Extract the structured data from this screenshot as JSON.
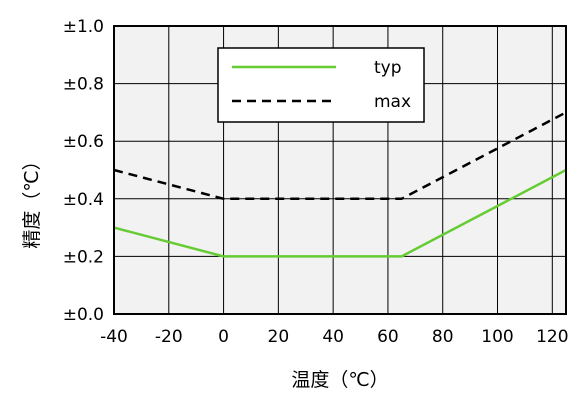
{
  "chart_data": {
    "type": "line",
    "xlabel": "温度（℃）",
    "ylabel": "精度（℃）",
    "xlim": [
      -40,
      125
    ],
    "ylim": [
      0,
      1.0
    ],
    "x_ticks": [
      "-40",
      "-20",
      "0",
      "20",
      "40",
      "60",
      "80",
      "100",
      "120"
    ],
    "y_ticks": [
      "±0.0",
      "±0.2",
      "±0.4",
      "±0.6",
      "±0.8",
      "±1.0"
    ],
    "grid": true,
    "legend_position": "top-center",
    "series": [
      {
        "name": "typ",
        "color": "#66cc33",
        "style": "solid",
        "points": [
          [
            -40,
            0.3
          ],
          [
            0,
            0.2
          ],
          [
            65,
            0.2
          ],
          [
            125,
            0.5
          ]
        ]
      },
      {
        "name": "max",
        "color": "#000000",
        "style": "dashed",
        "points": [
          [
            -40,
            0.5
          ],
          [
            0,
            0.4
          ],
          [
            65,
            0.4
          ],
          [
            125,
            0.7
          ]
        ]
      }
    ]
  }
}
